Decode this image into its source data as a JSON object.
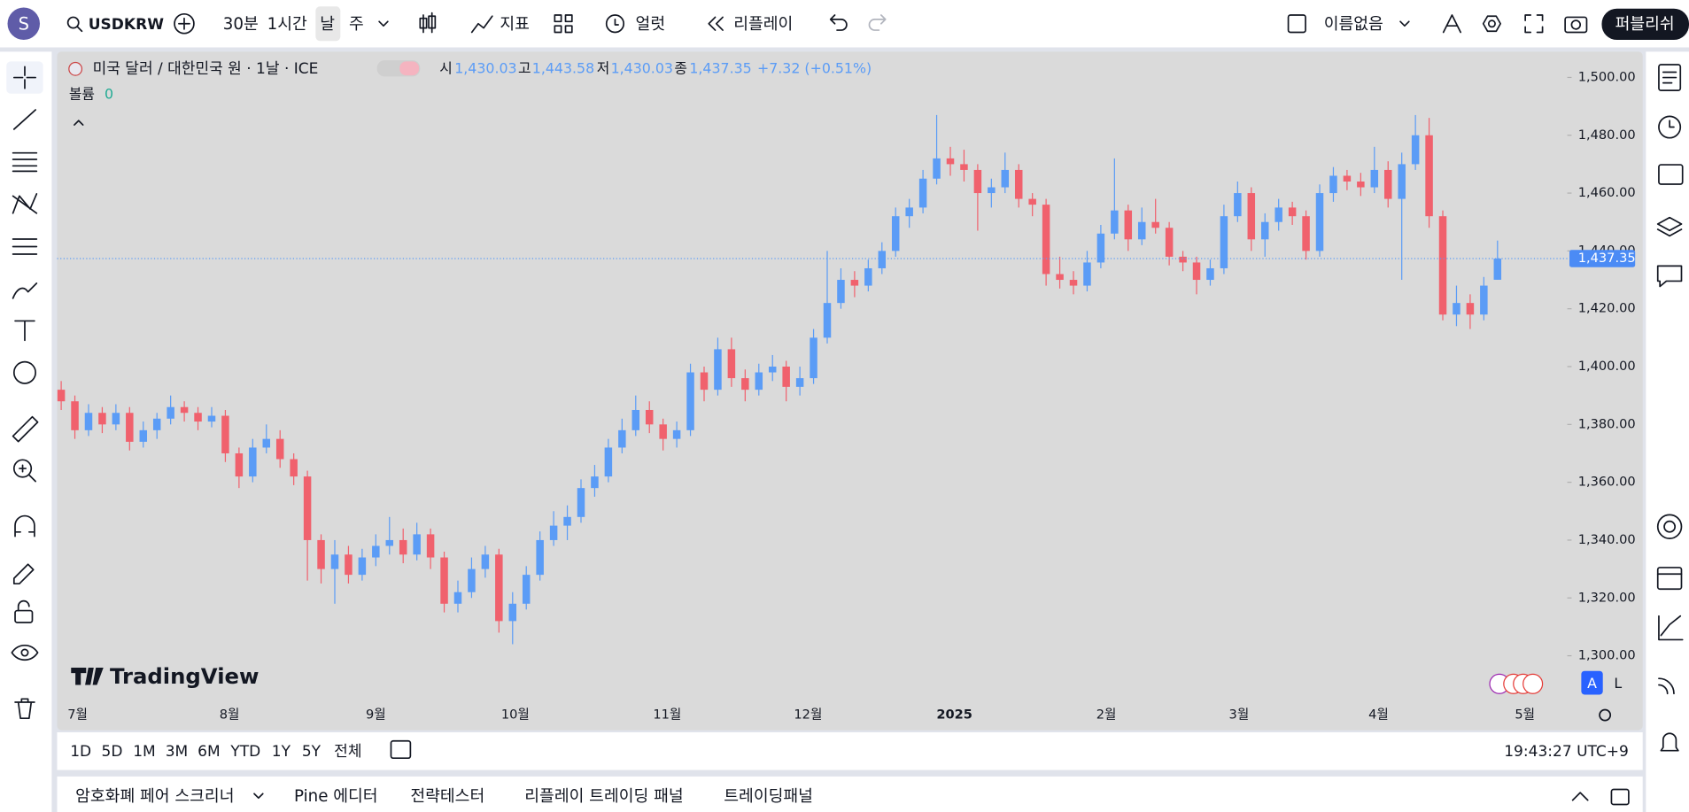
{
  "top_bar": {
    "avatar": "S",
    "symbol": "USDKRW",
    "intervals": [
      "30분",
      "1시간",
      "날",
      "주"
    ],
    "indicators": "지표",
    "alert": "얼럿",
    "replay": "리플레이",
    "layout_name": "이름없음",
    "publish": "퍼블리쉬"
  },
  "chart_data": {
    "type": "candlestick",
    "title": "미국 달러 / 대한민국 원 · 1날 · ICE",
    "legend": {
      "open_label": "시",
      "open": "1,430.03",
      "high_label": "고",
      "high": "1,443.58",
      "low_label": "저",
      "low": "1,430.03",
      "close_label": "종",
      "close": "1,437.35",
      "change": "+7.32 (+0.51%)"
    },
    "volume_label": "볼륨",
    "volume": 0,
    "last_price_label": "1,437.35",
    "watermark": "TradingView",
    "scale_modes": [
      "A",
      "L"
    ],
    "up_color": "#5b9cf6",
    "down_color": "#f0616d",
    "candles": [
      [
        1392,
        1395,
        1385,
        1388
      ],
      [
        1388,
        1390,
        1375,
        1378
      ],
      [
        1378,
        1387,
        1376,
        1384
      ],
      [
        1384,
        1386,
        1377,
        1380
      ],
      [
        1380,
        1387,
        1378,
        1384
      ],
      [
        1384,
        1386,
        1371,
        1374
      ],
      [
        1374,
        1381,
        1372,
        1378
      ],
      [
        1378,
        1384,
        1375,
        1382
      ],
      [
        1382,
        1390,
        1380,
        1386
      ],
      [
        1386,
        1388,
        1381,
        1384
      ],
      [
        1384,
        1386,
        1378,
        1381
      ],
      [
        1381,
        1386,
        1379,
        1383
      ],
      [
        1383,
        1385,
        1367,
        1370
      ],
      [
        1370,
        1372,
        1358,
        1362
      ],
      [
        1362,
        1375,
        1360,
        1372
      ],
      [
        1372,
        1380,
        1370,
        1375
      ],
      [
        1375,
        1378,
        1365,
        1368
      ],
      [
        1368,
        1370,
        1359,
        1362
      ],
      [
        1362,
        1364,
        1326,
        1340
      ],
      [
        1340,
        1342,
        1325,
        1330
      ],
      [
        1330,
        1340,
        1318,
        1335
      ],
      [
        1335,
        1338,
        1325,
        1328
      ],
      [
        1328,
        1337,
        1326,
        1334
      ],
      [
        1334,
        1342,
        1331,
        1338
      ],
      [
        1338,
        1348,
        1335,
        1340
      ],
      [
        1340,
        1344,
        1332,
        1335
      ],
      [
        1335,
        1346,
        1333,
        1342
      ],
      [
        1342,
        1344,
        1330,
        1334
      ],
      [
        1334,
        1336,
        1315,
        1318
      ],
      [
        1318,
        1326,
        1315,
        1322
      ],
      [
        1322,
        1334,
        1320,
        1330
      ],
      [
        1330,
        1338,
        1327,
        1335
      ],
      [
        1335,
        1337,
        1308,
        1312
      ],
      [
        1312,
        1322,
        1304,
        1318
      ],
      [
        1318,
        1331,
        1316,
        1328
      ],
      [
        1328,
        1343,
        1326,
        1340
      ],
      [
        1340,
        1350,
        1338,
        1345
      ],
      [
        1345,
        1352,
        1340,
        1348
      ],
      [
        1348,
        1361,
        1346,
        1358
      ],
      [
        1358,
        1366,
        1355,
        1362
      ],
      [
        1362,
        1375,
        1360,
        1372
      ],
      [
        1372,
        1382,
        1370,
        1378
      ],
      [
        1378,
        1390,
        1376,
        1385
      ],
      [
        1385,
        1388,
        1377,
        1380
      ],
      [
        1380,
        1382,
        1371,
        1375
      ],
      [
        1375,
        1381,
        1372,
        1378
      ],
      [
        1378,
        1401,
        1376,
        1398
      ],
      [
        1398,
        1400,
        1388,
        1392
      ],
      [
        1392,
        1410,
        1390,
        1406
      ],
      [
        1406,
        1410,
        1393,
        1396
      ],
      [
        1396,
        1399,
        1388,
        1392
      ],
      [
        1392,
        1401,
        1390,
        1398
      ],
      [
        1398,
        1404,
        1395,
        1400
      ],
      [
        1400,
        1402,
        1388,
        1393
      ],
      [
        1393,
        1400,
        1390,
        1396
      ],
      [
        1396,
        1413,
        1394,
        1410
      ],
      [
        1410,
        1440,
        1408,
        1422
      ],
      [
        1422,
        1434,
        1420,
        1430
      ],
      [
        1430,
        1433,
        1424,
        1428
      ],
      [
        1428,
        1437,
        1426,
        1434
      ],
      [
        1434,
        1443,
        1432,
        1440
      ],
      [
        1440,
        1455,
        1438,
        1452
      ],
      [
        1452,
        1458,
        1448,
        1455
      ],
      [
        1455,
        1468,
        1453,
        1465
      ],
      [
        1465,
        1487,
        1463,
        1472
      ],
      [
        1472,
        1476,
        1466,
        1470
      ],
      [
        1470,
        1475,
        1464,
        1468
      ],
      [
        1468,
        1470,
        1447,
        1460
      ],
      [
        1460,
        1465,
        1455,
        1462
      ],
      [
        1462,
        1474,
        1460,
        1468
      ],
      [
        1468,
        1470,
        1455,
        1458
      ],
      [
        1458,
        1460,
        1452,
        1456
      ],
      [
        1456,
        1458,
        1428,
        1432
      ],
      [
        1432,
        1438,
        1427,
        1430
      ],
      [
        1430,
        1433,
        1425,
        1428
      ],
      [
        1428,
        1440,
        1426,
        1436
      ],
      [
        1436,
        1449,
        1434,
        1446
      ],
      [
        1446,
        1472,
        1444,
        1454
      ],
      [
        1454,
        1456,
        1440,
        1444
      ],
      [
        1444,
        1455,
        1442,
        1450
      ],
      [
        1450,
        1458,
        1446,
        1448
      ],
      [
        1448,
        1450,
        1435,
        1438
      ],
      [
        1438,
        1440,
        1433,
        1436
      ],
      [
        1436,
        1438,
        1425,
        1430
      ],
      [
        1430,
        1437,
        1428,
        1434
      ],
      [
        1434,
        1456,
        1432,
        1452
      ],
      [
        1452,
        1464,
        1450,
        1460
      ],
      [
        1460,
        1462,
        1440,
        1444
      ],
      [
        1444,
        1453,
        1438,
        1450
      ],
      [
        1450,
        1458,
        1447,
        1455
      ],
      [
        1455,
        1457,
        1449,
        1452
      ],
      [
        1452,
        1454,
        1437,
        1440
      ],
      [
        1440,
        1463,
        1438,
        1460
      ],
      [
        1460,
        1469,
        1457,
        1466
      ],
      [
        1466,
        1468,
        1461,
        1464
      ],
      [
        1464,
        1467,
        1459,
        1462
      ],
      [
        1462,
        1476,
        1460,
        1468
      ],
      [
        1468,
        1471,
        1455,
        1458
      ],
      [
        1458,
        1474,
        1430,
        1470
      ],
      [
        1470,
        1487,
        1468,
        1480
      ],
      [
        1480,
        1486,
        1448,
        1452
      ],
      [
        1452,
        1454,
        1416,
        1418
      ],
      [
        1418,
        1428,
        1414,
        1422
      ],
      [
        1422,
        1425,
        1413,
        1418
      ],
      [
        1418,
        1431,
        1416,
        1428
      ],
      [
        1430.03,
        1443.58,
        1430.03,
        1437.35
      ]
    ],
    "ylim": [
      1284.7,
      1508.9
    ],
    "yticks": [
      {
        "value": 1300,
        "label": "1,300.00"
      },
      {
        "value": 1320,
        "label": "1,320.00"
      },
      {
        "value": 1340,
        "label": "1,340.00"
      },
      {
        "value": 1360,
        "label": "1,360.00"
      },
      {
        "value": 1380,
        "label": "1,380.00"
      },
      {
        "value": 1400,
        "label": "1,400.00"
      },
      {
        "value": 1420,
        "label": "1,420.00"
      },
      {
        "value": 1440,
        "label": "1,440.00"
      },
      {
        "value": 1460,
        "label": "1,460.00"
      },
      {
        "value": 1480,
        "label": "1,480.00"
      },
      {
        "value": 1500,
        "label": "1,500.00"
      }
    ],
    "xlim": [
      -0.3,
      110.1
    ],
    "xticks": [
      {
        "value": 1.2,
        "label": "7월"
      },
      {
        "value": 12.3,
        "label": "8월"
      },
      {
        "value": 23.0,
        "label": "9월"
      },
      {
        "value": 33.2,
        "label": "10월"
      },
      {
        "value": 44.3,
        "label": "11월"
      },
      {
        "value": 54.6,
        "label": "12월"
      },
      {
        "value": 65.3,
        "label": "2025"
      },
      {
        "value": 76.4,
        "label": "2월"
      },
      {
        "value": 86.1,
        "label": "3월"
      },
      {
        "value": 96.3,
        "label": "4월"
      },
      {
        "value": 107.0,
        "label": "5월"
      }
    ],
    "grid": false
  },
  "bottom_bar": {
    "ranges": [
      "1D",
      "5D",
      "1M",
      "3M",
      "6M",
      "YTD",
      "1Y",
      "5Y",
      "전체"
    ],
    "clock": "19:43:27 UTC+9"
  },
  "panels": {
    "tabs": [
      "암호화폐 페어 스크리너",
      "Pine 에디터",
      "전략테스터",
      "리플레이 트레이딩 패널",
      "트레이딩패널"
    ]
  }
}
